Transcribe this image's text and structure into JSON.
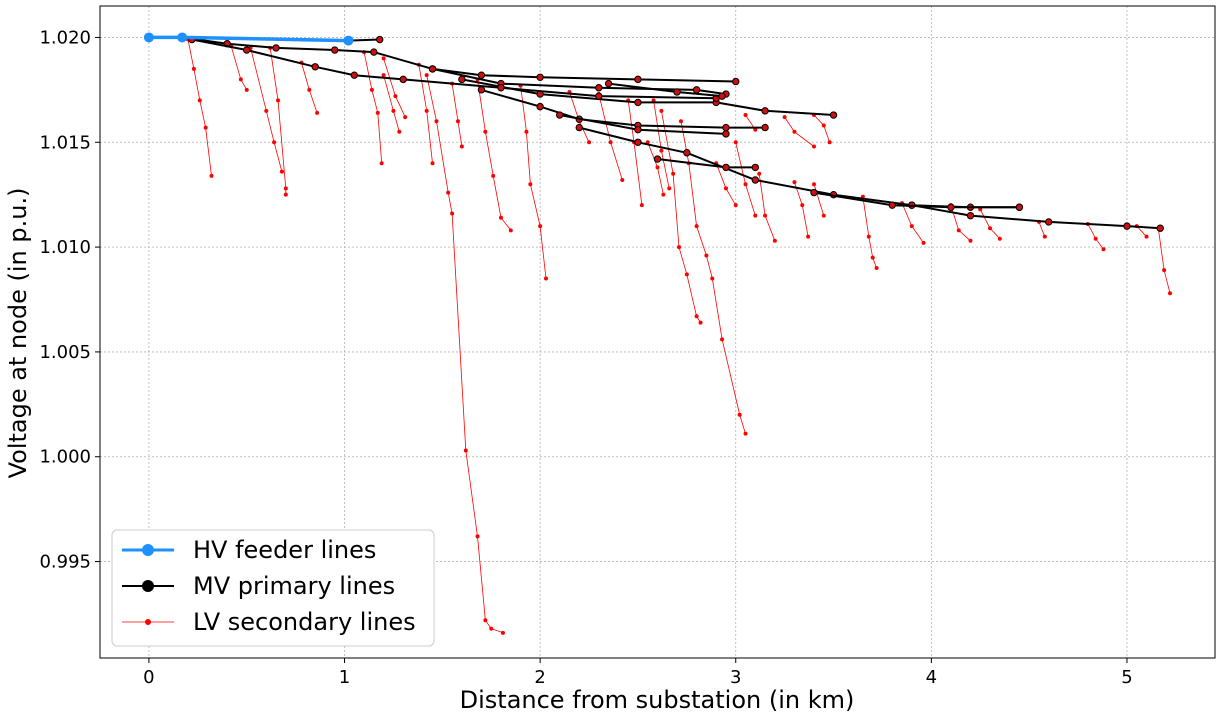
{
  "chart_data": {
    "type": "line",
    "title": "",
    "xlabel": "Distance from substation (in km)",
    "ylabel": "Voltage at node (in p.u.)",
    "xlim": [
      -0.25,
      5.45
    ],
    "ylim": [
      0.9904,
      1.0215
    ],
    "xticks": [
      0,
      1,
      2,
      3,
      4,
      5
    ],
    "yticks": [
      0.995,
      1.0,
      1.005,
      1.01,
      1.015,
      1.02
    ],
    "xtick_labels": [
      "0",
      "1",
      "2",
      "3",
      "4",
      "5"
    ],
    "ytick_labels": [
      "0.995",
      "1.000",
      "1.005",
      "1.010",
      "1.015",
      "1.020"
    ],
    "grid": true,
    "legend_position": "lower-left",
    "legend": [
      "HV feeder lines",
      "MV primary lines",
      "LV secondary lines"
    ],
    "colors": {
      "hv": "#1e90ff",
      "mv": "#000000",
      "lv": "#ff0000",
      "mv_node_fill": "#cc1010"
    },
    "series": [
      {
        "name": "HV feeder lines",
        "segments": [
          [
            [
              0.0,
              1.02
            ],
            [
              0.17,
              1.02
            ],
            [
              1.02,
              1.01985
            ]
          ]
        ]
      },
      {
        "name": "MV primary lines",
        "segments": [
          [
            [
              0.17,
              1.02
            ],
            [
              0.4,
              1.0197
            ],
            [
              0.65,
              1.0195
            ],
            [
              0.95,
              1.0194
            ],
            [
              1.15,
              1.0193
            ],
            [
              1.45,
              1.0185
            ],
            [
              1.7,
              1.0182
            ],
            [
              2.0,
              1.0181
            ],
            [
              2.5,
              1.018
            ],
            [
              3.0,
              1.0179
            ]
          ],
          [
            [
              1.02,
              1.01985
            ],
            [
              1.18,
              1.0199
            ]
          ],
          [
            [
              1.45,
              1.0185
            ],
            [
              1.8,
              1.0178
            ],
            [
              2.3,
              1.0176
            ],
            [
              2.8,
              1.0175
            ],
            [
              2.95,
              1.0173
            ]
          ],
          [
            [
              1.6,
              1.018
            ],
            [
              2.0,
              1.0173
            ],
            [
              2.5,
              1.0169
            ],
            [
              2.9,
              1.0169
            ],
            [
              3.15,
              1.0165
            ],
            [
              3.5,
              1.0163
            ]
          ],
          [
            [
              0.22,
              1.0199
            ],
            [
              0.5,
              1.0194
            ],
            [
              0.85,
              1.0186
            ],
            [
              1.05,
              1.0182
            ],
            [
              1.3,
              1.018
            ],
            [
              1.8,
              1.0176
            ],
            [
              2.3,
              1.0172
            ],
            [
              2.9,
              1.0171
            ]
          ],
          [
            [
              1.7,
              1.0175
            ],
            [
              2.0,
              1.0167
            ],
            [
              2.2,
              1.0161
            ],
            [
              2.5,
              1.0158
            ],
            [
              2.95,
              1.0157
            ],
            [
              3.15,
              1.0157
            ]
          ],
          [
            [
              2.1,
              1.0163
            ],
            [
              2.5,
              1.0156
            ],
            [
              2.95,
              1.0154
            ]
          ],
          [
            [
              2.2,
              1.0157
            ],
            [
              2.5,
              1.015
            ],
            [
              2.75,
              1.0145
            ],
            [
              3.1,
              1.0132
            ],
            [
              3.5,
              1.0125
            ],
            [
              3.9,
              1.012
            ],
            [
              4.2,
              1.0119
            ],
            [
              4.45,
              1.0119
            ]
          ],
          [
            [
              2.6,
              1.0142
            ],
            [
              2.95,
              1.0138
            ],
            [
              3.1,
              1.0138
            ]
          ],
          [
            [
              3.9,
              1.012
            ],
            [
              4.2,
              1.0115
            ],
            [
              4.6,
              1.0112
            ],
            [
              5.0,
              1.011
            ],
            [
              5.17,
              1.0109
            ]
          ],
          [
            [
              3.4,
              1.0126
            ],
            [
              3.8,
              1.012
            ],
            [
              4.1,
              1.0119
            ],
            [
              4.45,
              1.0119
            ]
          ],
          [
            [
              2.35,
              1.0178
            ],
            [
              2.7,
              1.0174
            ],
            [
              2.93,
              1.0172
            ]
          ]
        ]
      },
      {
        "name": "LV secondary lines",
        "segments": [
          [
            [
              0.2,
              1.0199
            ],
            [
              0.23,
              1.0185
            ],
            [
              0.26,
              1.017
            ],
            [
              0.29,
              1.0157
            ],
            [
              0.32,
              1.0134
            ]
          ],
          [
            [
              0.42,
              1.0196
            ],
            [
              0.47,
              1.018
            ],
            [
              0.5,
              1.0175
            ]
          ],
          [
            [
              0.52,
              1.0195
            ],
            [
              0.6,
              1.0165
            ],
            [
              0.64,
              1.015
            ],
            [
              0.68,
              1.0136
            ]
          ],
          [
            [
              0.62,
              1.0195
            ],
            [
              0.66,
              1.017
            ],
            [
              0.7,
              1.0128
            ],
            [
              0.7,
              1.0125
            ]
          ],
          [
            [
              0.78,
              1.0188
            ],
            [
              0.82,
              1.0175
            ],
            [
              0.86,
              1.0164
            ]
          ],
          [
            [
              1.1,
              1.0193
            ],
            [
              1.14,
              1.0175
            ],
            [
              1.17,
              1.0164
            ],
            [
              1.19,
              1.014
            ]
          ],
          [
            [
              1.2,
              1.019
            ],
            [
              1.26,
              1.0172
            ],
            [
              1.31,
              1.0162
            ]
          ],
          [
            [
              1.38,
              1.0187
            ],
            [
              1.42,
              1.0165
            ],
            [
              1.45,
              1.014
            ]
          ],
          [
            [
              1.42,
              1.0182
            ],
            [
              1.47,
              1.016
            ],
            [
              1.53,
              1.0126
            ],
            [
              1.55,
              1.0116
            ],
            [
              1.62,
              1.0003
            ],
            [
              1.68,
              0.9962
            ],
            [
              1.72,
              0.9922
            ],
            [
              1.75,
              0.9918
            ],
            [
              1.81,
              0.9916
            ]
          ],
          [
            [
              1.68,
              1.018
            ],
            [
              1.72,
              1.0155
            ],
            [
              1.76,
              1.0134
            ],
            [
              1.8,
              1.0114
            ],
            [
              1.85,
              1.0108
            ]
          ],
          [
            [
              1.9,
              1.0177
            ],
            [
              1.93,
              1.0155
            ],
            [
              1.95,
              1.013
            ],
            [
              2.0,
              1.011
            ],
            [
              2.03,
              1.0085
            ]
          ],
          [
            [
              2.3,
              1.0173
            ],
            [
              2.36,
              1.015
            ],
            [
              2.42,
              1.0132
            ]
          ],
          [
            [
              2.45,
              1.017
            ],
            [
              2.48,
              1.015
            ],
            [
              2.52,
              1.012
            ]
          ],
          [
            [
              2.62,
              1.0165
            ],
            [
              2.68,
              1.0135
            ],
            [
              2.71,
              1.01
            ],
            [
              2.75,
              1.0087
            ],
            [
              2.8,
              1.0067
            ],
            [
              2.82,
              1.0064
            ]
          ],
          [
            [
              2.72,
              1.016
            ],
            [
              2.76,
              1.014
            ],
            [
              2.8,
              1.011
            ],
            [
              2.85,
              1.0096
            ],
            [
              2.88,
              1.0085
            ],
            [
              2.93,
              1.0056
            ],
            [
              3.02,
              1.002
            ],
            [
              3.05,
              1.0011
            ]
          ],
          [
            [
              2.58,
              1.017
            ],
            [
              2.62,
              1.0146
            ],
            [
              2.66,
              1.0128
            ]
          ],
          [
            [
              3.0,
              1.015
            ],
            [
              3.05,
              1.013
            ],
            [
              3.1,
              1.0115
            ]
          ],
          [
            [
              3.12,
              1.0135
            ],
            [
              3.15,
              1.0115
            ],
            [
              3.2,
              1.0103
            ]
          ],
          [
            [
              3.3,
              1.0131
            ],
            [
              3.34,
              1.012
            ],
            [
              3.37,
              1.0105
            ]
          ],
          [
            [
              3.4,
              1.013
            ],
            [
              3.45,
              1.0115
            ]
          ],
          [
            [
              3.65,
              1.0124
            ],
            [
              3.68,
              1.0105
            ],
            [
              3.7,
              1.0095
            ],
            [
              3.72,
              1.009
            ]
          ],
          [
            [
              3.85,
              1.0121
            ],
            [
              3.9,
              1.011
            ],
            [
              3.96,
              1.0102
            ]
          ],
          [
            [
              4.1,
              1.012
            ],
            [
              4.14,
              1.0108
            ],
            [
              4.2,
              1.0103
            ]
          ],
          [
            [
              4.25,
              1.0118
            ],
            [
              4.3,
              1.0109
            ],
            [
              4.35,
              1.0104
            ]
          ],
          [
            [
              4.55,
              1.0112
            ],
            [
              4.58,
              1.0105
            ]
          ],
          [
            [
              4.8,
              1.0111
            ],
            [
              4.84,
              1.0104
            ],
            [
              4.88,
              1.0099
            ]
          ],
          [
            [
              5.05,
              1.011
            ],
            [
              5.1,
              1.0105
            ]
          ],
          [
            [
              5.16,
              1.0109
            ],
            [
              5.19,
              1.0089
            ],
            [
              5.22,
              1.0078
            ]
          ],
          [
            [
              3.4,
              1.0163
            ],
            [
              3.45,
              1.0158
            ],
            [
              3.48,
              1.015
            ]
          ],
          [
            [
              3.05,
              1.0163
            ],
            [
              3.1,
              1.0156
            ]
          ],
          [
            [
              3.25,
              1.0162
            ],
            [
              3.3,
              1.0155
            ],
            [
              3.4,
              1.0148
            ]
          ],
          [
            [
              2.15,
              1.0174
            ],
            [
              2.2,
              1.016
            ],
            [
              2.25,
              1.015
            ]
          ],
          [
            [
              1.55,
              1.0178
            ],
            [
              1.58,
              1.016
            ],
            [
              1.6,
              1.0148
            ]
          ],
          [
            [
              1.2,
              1.0182
            ],
            [
              1.25,
              1.0165
            ],
            [
              1.28,
              1.0155
            ]
          ],
          [
            [
              2.55,
              1.015
            ],
            [
              2.6,
              1.0138
            ],
            [
              2.63,
              1.0125
            ]
          ],
          [
            [
              2.9,
              1.014
            ],
            [
              2.95,
              1.0128
            ],
            [
              3.0,
              1.012
            ]
          ]
        ]
      }
    ]
  }
}
